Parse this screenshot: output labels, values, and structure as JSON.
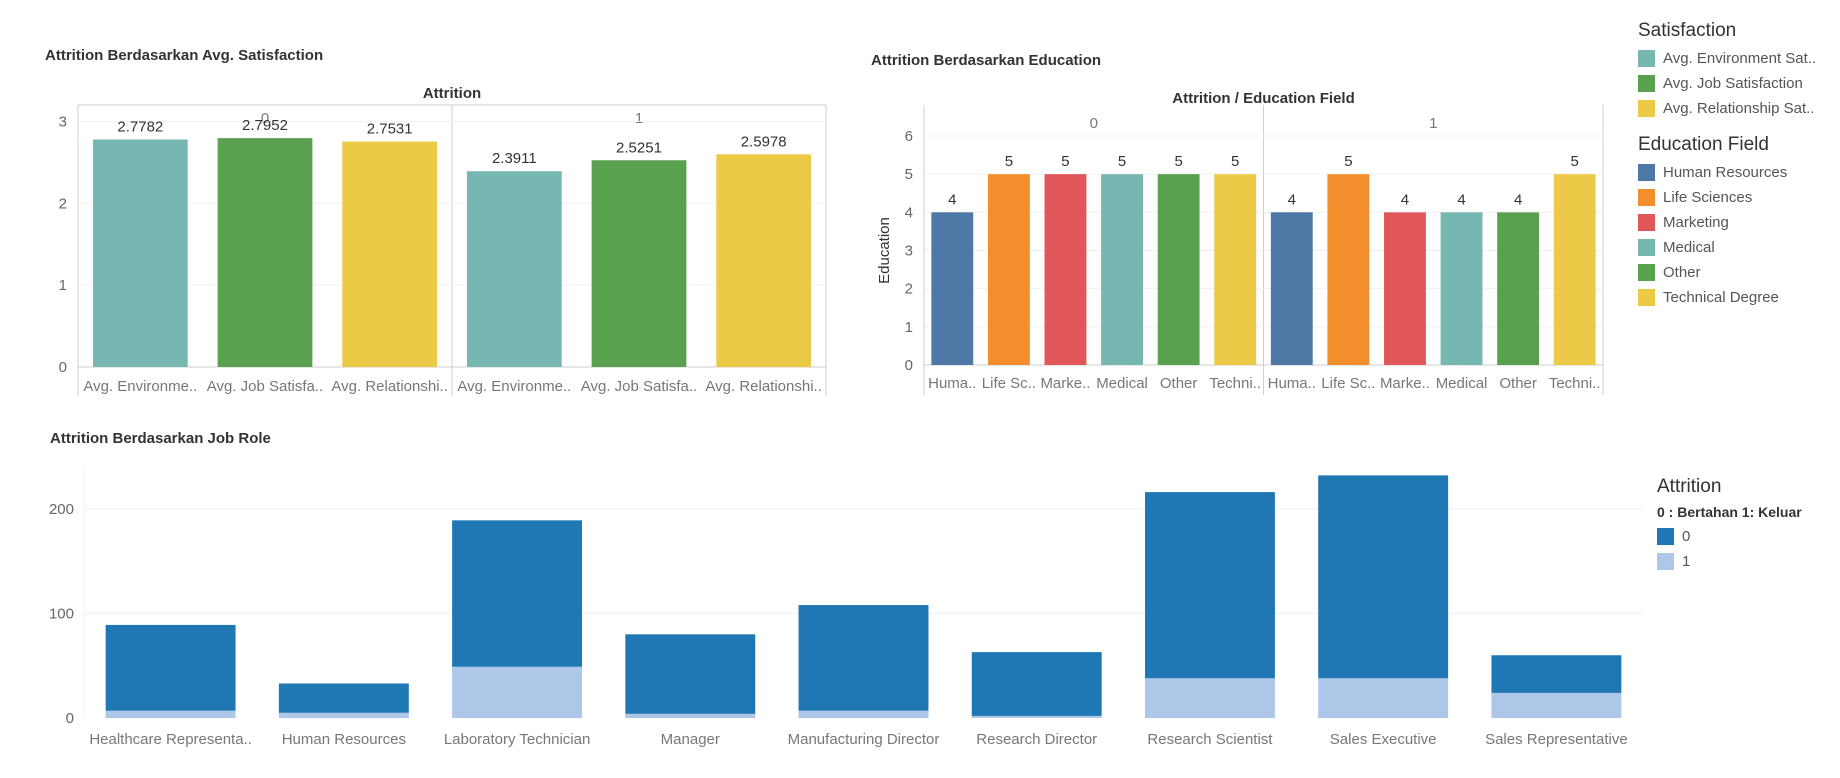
{
  "chart_data": [
    {
      "type": "bar",
      "title": "Attrition Berdasarkan Avg. Satisfaction",
      "panel_header": "Attrition",
      "panels": [
        "0",
        "1"
      ],
      "categories": [
        "Avg. Environme..",
        "Avg. Job Satisfa..",
        "Avg. Relationshi.."
      ],
      "series": [
        {
          "panel": "0",
          "values": [
            2.7782,
            2.7952,
            2.7531
          ],
          "labels": [
            "2.7782",
            "2.7952",
            "2.7531"
          ]
        },
        {
          "panel": "1",
          "values": [
            2.3911,
            2.5251,
            2.5978
          ],
          "labels": [
            "2.3911",
            "2.5251",
            "2.5978"
          ]
        }
      ],
      "colors": [
        "#76b7b2",
        "#59a14f",
        "#edc948"
      ],
      "yticks": [
        "0",
        "1",
        "2",
        "3"
      ],
      "ylim": [
        0,
        3.2
      ],
      "grid": true
    },
    {
      "type": "bar",
      "title": "Attrition Berdasarkan Education",
      "panel_header": "Attrition  /  Education Field",
      "ylabel": "Education",
      "panels": [
        "0",
        "1"
      ],
      "categories": [
        "Huma..",
        "Life Sc..",
        "Marke..",
        "Medical",
        "Other",
        "Techni.."
      ],
      "series": [
        {
          "panel": "0",
          "values": [
            4,
            5,
            5,
            5,
            5,
            5
          ],
          "labels": [
            "4",
            "5",
            "5",
            "5",
            "5",
            "5"
          ]
        },
        {
          "panel": "1",
          "values": [
            4,
            5,
            4,
            4,
            4,
            5
          ],
          "labels": [
            "4",
            "5",
            "4",
            "4",
            "4",
            "5"
          ]
        }
      ],
      "colors": [
        "#4e79a7",
        "#f28e2b",
        "#e15759",
        "#76b7b2",
        "#59a14f",
        "#edc948"
      ],
      "yticks": [
        "0",
        "1",
        "2",
        "3",
        "4",
        "5",
        "6"
      ],
      "ylim": [
        0,
        6
      ],
      "grid": true
    },
    {
      "type": "bar",
      "stacked": true,
      "title": "Attrition Berdasarkan Job Role",
      "categories": [
        "Healthcare Representa..",
        "Human Resources",
        "Laboratory Technician",
        "Manager",
        "Manufacturing Director",
        "Research Director",
        "Research Scientist",
        "Sales Executive",
        "Sales Representative"
      ],
      "series": [
        {
          "name": "1",
          "values": [
            7,
            5,
            49,
            4,
            7,
            2,
            38,
            38,
            24
          ]
        },
        {
          "name": "0",
          "values": [
            82,
            28,
            140,
            76,
            101,
            61,
            178,
            194,
            36
          ]
        }
      ],
      "colors": {
        "0": "#1f77b4",
        "1": "#aec7e8"
      },
      "yticks": [
        "0",
        "100",
        "200"
      ],
      "ylim": [
        0,
        240
      ],
      "grid": true
    }
  ],
  "legends": {
    "satisfaction": {
      "title": "Satisfaction",
      "items": [
        {
          "label": "Avg. Environment Sat..",
          "color": "#76b7b2"
        },
        {
          "label": "Avg. Job Satisfaction",
          "color": "#59a14f"
        },
        {
          "label": "Avg. Relationship Sat..",
          "color": "#edc948"
        }
      ]
    },
    "education": {
      "title": "Education Field",
      "items": [
        {
          "label": "Human Resources",
          "color": "#4e79a7"
        },
        {
          "label": "Life Sciences",
          "color": "#f28e2b"
        },
        {
          "label": "Marketing",
          "color": "#e15759"
        },
        {
          "label": "Medical",
          "color": "#76b7b2"
        },
        {
          "label": "Other",
          "color": "#59a14f"
        },
        {
          "label": "Technical Degree",
          "color": "#edc948"
        }
      ]
    },
    "attrition": {
      "title": "Attrition",
      "subtitle": "0 : Bertahan 1: Keluar",
      "items": [
        {
          "label": "0",
          "color": "#1f77b4"
        },
        {
          "label": "1",
          "color": "#aec7e8"
        }
      ]
    }
  }
}
